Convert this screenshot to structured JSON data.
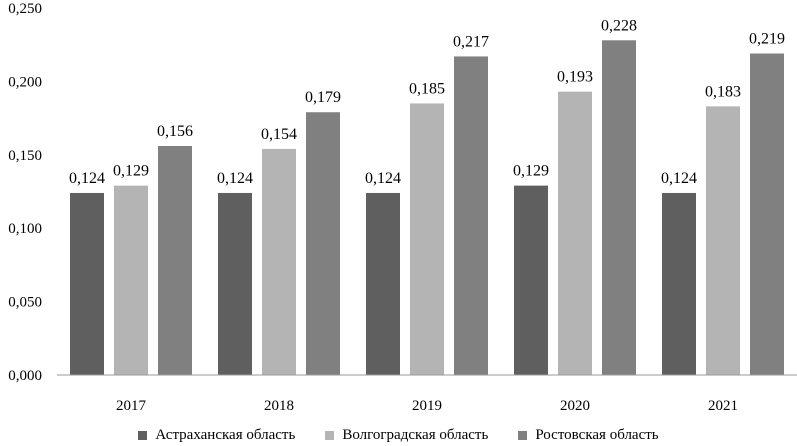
{
  "chart_data": {
    "type": "bar",
    "categories": [
      "2017",
      "2018",
      "2019",
      "2020",
      "2021"
    ],
    "series": [
      {
        "name": "Астраханская область",
        "color": "#5f5f5f",
        "values": [
          0.124,
          0.124,
          0.124,
          0.129,
          0.124
        ],
        "labels": [
          "0,124",
          "0,124",
          "0,124",
          "0,129",
          "0,124"
        ]
      },
      {
        "name": "Волгоградская область",
        "color": "#b4b4b4",
        "values": [
          0.129,
          0.154,
          0.185,
          0.193,
          0.183
        ],
        "labels": [
          "0,129",
          "0,154",
          "0,185",
          "0,193",
          "0,183"
        ]
      },
      {
        "name": "Ростовская область",
        "color": "#808080",
        "values": [
          0.156,
          0.179,
          0.217,
          0.228,
          0.219
        ],
        "labels": [
          "0,156",
          "0,179",
          "0,217",
          "0,228",
          "0,219"
        ]
      }
    ],
    "ylim": [
      0,
      0.25
    ],
    "yticks": [
      0,
      0.05,
      0.1,
      0.15,
      0.2,
      0.25
    ],
    "ytick_labels": [
      "0,000",
      "0,050",
      "0,100",
      "0,150",
      "0,200",
      "0,250"
    ],
    "title": "",
    "xlabel": "",
    "ylabel": "",
    "grid": false,
    "legend_position": "bottom"
  }
}
